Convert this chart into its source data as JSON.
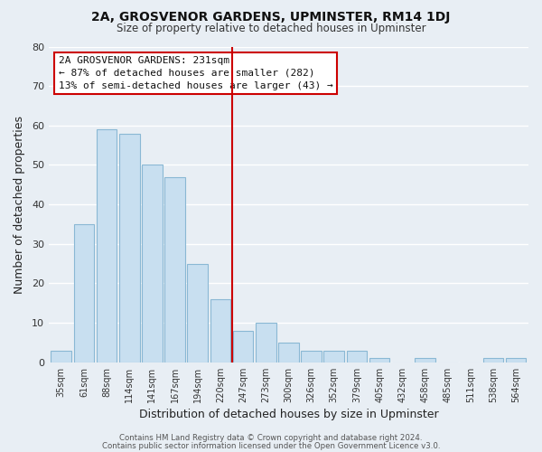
{
  "title": "2A, GROSVENOR GARDENS, UPMINSTER, RM14 1DJ",
  "subtitle": "Size of property relative to detached houses in Upminster",
  "xlabel": "Distribution of detached houses by size in Upminster",
  "ylabel": "Number of detached properties",
  "bar_color": "#c8dff0",
  "bar_edge_color": "#8ab8d4",
  "background_color": "#e8eef4",
  "grid_color": "#ffffff",
  "bins": [
    "35sqm",
    "61sqm",
    "88sqm",
    "114sqm",
    "141sqm",
    "167sqm",
    "194sqm",
    "220sqm",
    "247sqm",
    "273sqm",
    "300sqm",
    "326sqm",
    "352sqm",
    "379sqm",
    "405sqm",
    "432sqm",
    "458sqm",
    "485sqm",
    "511sqm",
    "538sqm",
    "564sqm"
  ],
  "values": [
    3,
    35,
    59,
    58,
    50,
    47,
    25,
    16,
    8,
    10,
    5,
    3,
    3,
    3,
    1,
    0,
    1,
    0,
    0,
    1,
    1
  ],
  "ylim": [
    0,
    80
  ],
  "yticks": [
    0,
    10,
    20,
    30,
    40,
    50,
    60,
    70,
    80
  ],
  "property_line_color": "#cc0000",
  "annotation_title": "2A GROSVENOR GARDENS: 231sqm",
  "annotation_line1": "← 87% of detached houses are smaller (282)",
  "annotation_line2": "13% of semi-detached houses are larger (43) →",
  "annotation_box_color": "white",
  "annotation_box_edge_color": "#cc0000",
  "footer1": "Contains HM Land Registry data © Crown copyright and database right 2024.",
  "footer2": "Contains public sector information licensed under the Open Government Licence v3.0."
}
